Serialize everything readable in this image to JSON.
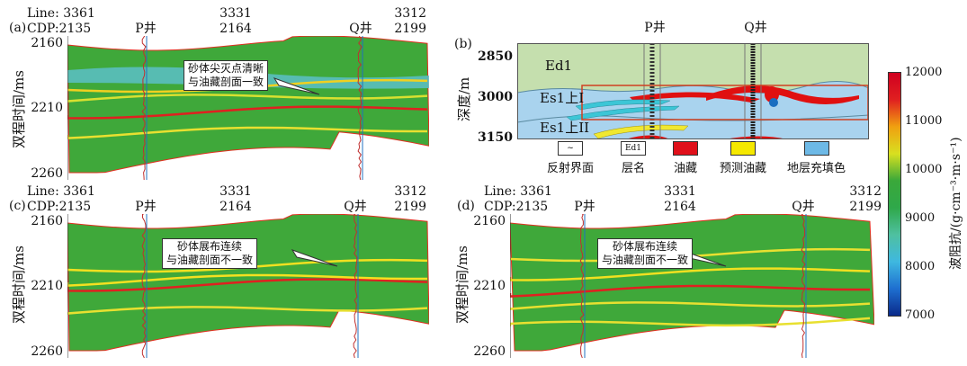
{
  "panels": {
    "a": {
      "label": "(a)",
      "line_prefix": "Line: 3361",
      "cdp_prefix": "CDP:2135",
      "line_mid": "3331",
      "cdp_mid": "2164",
      "line_end": "3312",
      "cdp_end": "2199",
      "well_p": "P井",
      "well_q": "Q井",
      "yticks": [
        "2160",
        "2210",
        "2260"
      ],
      "ylabel": "双程时间/ms",
      "callout": [
        "砂体尖灭点清晰",
        "与油藏剖面一致"
      ]
    },
    "b": {
      "label": "(b)",
      "well_p": "P井",
      "well_q": "Q井",
      "yticks": [
        "2850",
        "3000",
        "3150"
      ],
      "ylabel": "深度/m",
      "layers": [
        "Ed1",
        "Es1上I",
        "Es1上II"
      ],
      "legend": [
        {
          "label": "反射界面",
          "color": "#ffffff"
        },
        {
          "label": "层名",
          "color": "#ffffff",
          "sample": "Ed1"
        },
        {
          "label": "油藏",
          "color": "#e0101a"
        },
        {
          "label": "预测油藏",
          "color": "#f5e800"
        },
        {
          "label": "地层充填色",
          "color": "#6db9e6"
        }
      ]
    },
    "c": {
      "label": "(c)",
      "line_prefix": "Line: 3361",
      "cdp_prefix": "CDP:2135",
      "line_mid": "3331",
      "cdp_mid": "2164",
      "line_end": "3312",
      "cdp_end": "2199",
      "well_p": "P井",
      "well_q": "Q井",
      "yticks": [
        "2160",
        "2210",
        "2260"
      ],
      "ylabel": "双程时间/ms",
      "callout": [
        "砂体展布连续",
        "与油藏剖面不一致"
      ]
    },
    "d": {
      "label": "(d)",
      "line_prefix": "Line: 3361",
      "cdp_prefix": "CDP:2135",
      "line_mid": "3331",
      "cdp_mid": "2164",
      "line_end": "3312",
      "cdp_end": "2199",
      "well_p": "P井",
      "well_q": "Q井",
      "yticks": [
        "2160",
        "2210",
        "2260"
      ],
      "ylabel": "双程时间/ms",
      "callout": [
        "砂体展布连续",
        "与油藏剖面不一致"
      ]
    }
  },
  "colorbar": {
    "ticks": [
      "12000",
      "11000",
      "10000",
      "9000",
      "8000",
      "7000"
    ],
    "min": 7000,
    "max": 12000,
    "label": "波阻抗/(g·cm⁻³·m·s⁻¹)",
    "colors": [
      "#0a2a8a",
      "#1e6fd0",
      "#3fb8e0",
      "#4fc0a0",
      "#2fa84a",
      "#3aa83a",
      "#d8e020",
      "#f0a010",
      "#e02020",
      "#d00020"
    ]
  }
}
